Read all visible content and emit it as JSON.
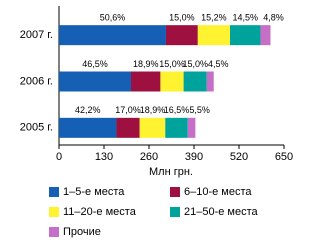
{
  "chart_data": {
    "type": "stacked-bar-horizontal",
    "categories": [
      "2007 г.",
      "2006 г.",
      "2005 г."
    ],
    "series": [
      {
        "name": "1–5-е места",
        "color": "#1560b4",
        "values": [
          309,
          208,
          166
        ],
        "value_labels": [
          "50,6%",
          "46,5%",
          "42,2%"
        ]
      },
      {
        "name": "6–10-е места",
        "color": "#9e1040",
        "values": [
          92,
          85,
          67
        ],
        "value_labels": [
          "15,0%",
          "18,9%",
          "17,0%"
        ]
      },
      {
        "name": "11–20-е места",
        "color": "#fff230",
        "values": [
          93,
          67,
          74
        ],
        "value_labels": [
          "15,2%",
          "15,0%",
          "18,9%"
        ]
      },
      {
        "name": "21–50-е места",
        "color": "#00a39c",
        "values": [
          88,
          67,
          65
        ],
        "value_labels": [
          "14,5%",
          "15,0%",
          "16,5%"
        ]
      },
      {
        "name": "Прочие",
        "color": "#c56fc6",
        "values": [
          29,
          20,
          22
        ],
        "value_labels": [
          "4,8%",
          "4,5%",
          "5,5%"
        ]
      }
    ],
    "xlabel": "Млн грн.",
    "xlim": [
      0,
      650
    ],
    "xticks": [
      0,
      130,
      260,
      390,
      520,
      650
    ]
  }
}
